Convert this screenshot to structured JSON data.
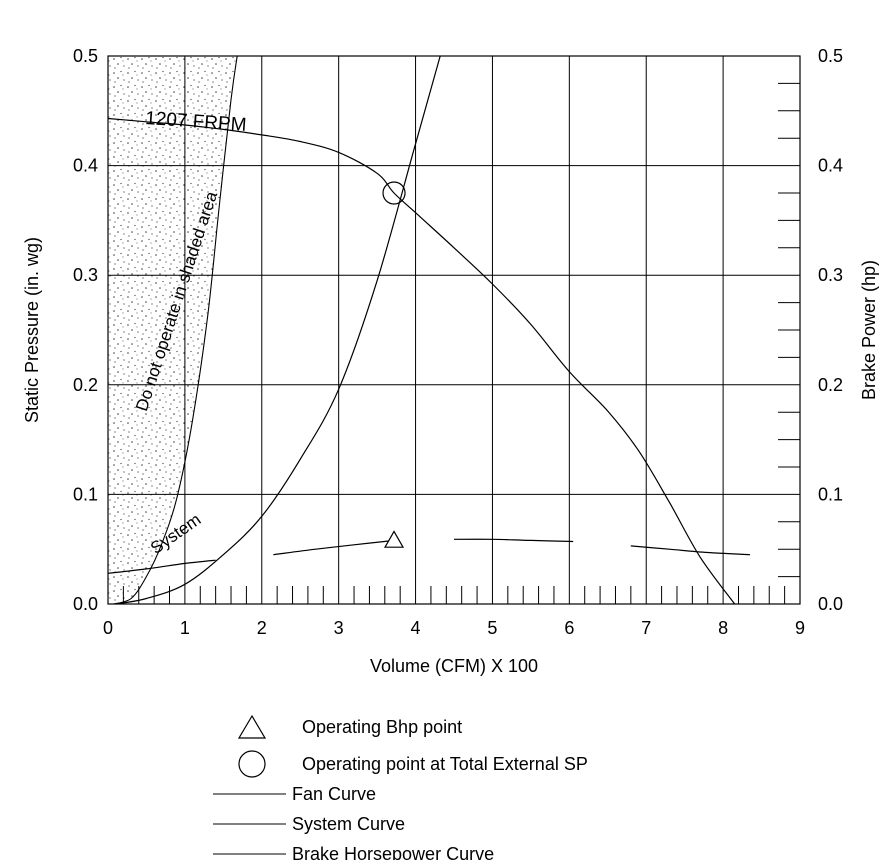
{
  "chart_data": {
    "type": "line",
    "xlabel": "Volume (CFM) X 100",
    "ylabel": "Static Pressure (in. wg)",
    "ylabel_right": "Brake Power (hp)",
    "xlim": [
      0,
      9
    ],
    "ylim": [
      0,
      0.5
    ],
    "ylim_right": [
      0,
      0.5
    ],
    "x_ticks": [
      "0",
      "1",
      "2",
      "3",
      "4",
      "5",
      "6",
      "7",
      "8",
      "9"
    ],
    "y_ticks": [
      "0.0",
      "0.1",
      "0.2",
      "0.3",
      "0.4",
      "0.5"
    ],
    "y_ticks_right": [
      "0.0",
      "0.1",
      "0.2",
      "0.3",
      "0.4",
      "0.5"
    ],
    "grid": true,
    "series": [
      {
        "name": "Fan Curve",
        "label": "1207 FRPM",
        "points": [
          [
            0,
            0.443
          ],
          [
            0.5,
            0.44
          ],
          [
            1.0,
            0.437
          ],
          [
            1.5,
            0.433
          ],
          [
            2.0,
            0.428
          ],
          [
            2.5,
            0.422
          ],
          [
            3.0,
            0.412
          ],
          [
            3.5,
            0.393
          ],
          [
            3.72,
            0.375
          ],
          [
            4.0,
            0.357
          ],
          [
            4.5,
            0.325
          ],
          [
            5.0,
            0.292
          ],
          [
            5.5,
            0.255
          ],
          [
            6.0,
            0.212
          ],
          [
            6.5,
            0.176
          ],
          [
            6.9,
            0.14
          ],
          [
            7.3,
            0.093
          ],
          [
            7.7,
            0.043
          ],
          [
            8.15,
            0.0
          ]
        ]
      },
      {
        "name": "System Curve",
        "label": "System",
        "points": [
          [
            0.1,
            0.0
          ],
          [
            0.5,
            0.005
          ],
          [
            1.0,
            0.018
          ],
          [
            1.5,
            0.045
          ],
          [
            2.0,
            0.08
          ],
          [
            2.5,
            0.132
          ],
          [
            3.0,
            0.196
          ],
          [
            3.5,
            0.295
          ],
          [
            4.0,
            0.42
          ],
          [
            4.32,
            0.5
          ]
        ]
      },
      {
        "name": "Brake Horsepower Curve",
        "segments": [
          [
            [
              0,
              0.028
            ],
            [
              0.5,
              0.032
            ],
            [
              1.0,
              0.037
            ],
            [
              1.4,
              0.04
            ]
          ],
          [
            [
              2.15,
              0.045
            ],
            [
              2.7,
              0.05
            ],
            [
              3.2,
              0.054
            ],
            [
              3.72,
              0.058
            ]
          ],
          [
            [
              4.5,
              0.059
            ],
            [
              5.0,
              0.059
            ],
            [
              5.5,
              0.058
            ],
            [
              6.05,
              0.057
            ]
          ],
          [
            [
              6.8,
              0.053
            ],
            [
              7.3,
              0.05
            ],
            [
              7.8,
              0.047
            ],
            [
              8.35,
              0.045
            ]
          ]
        ]
      }
    ],
    "restricted_region": {
      "label": "Do not operate in shaded area",
      "boundary": [
        [
          0.07,
          0.0
        ],
        [
          0.3,
          0.005
        ],
        [
          0.5,
          0.025
        ],
        [
          0.7,
          0.055
        ],
        [
          0.9,
          0.098
        ],
        [
          1.1,
          0.168
        ],
        [
          1.3,
          0.265
        ],
        [
          1.45,
          0.365
        ],
        [
          1.6,
          0.46
        ],
        [
          1.68,
          0.5
        ]
      ]
    },
    "markers": [
      {
        "name": "Operating Bhp point",
        "shape": "triangle",
        "x": 3.72,
        "y": 0.058
      },
      {
        "name": "Operating point at Total External SP",
        "shape": "circle",
        "x": 3.72,
        "y": 0.375
      }
    ],
    "legend": {
      "placement": "bottom",
      "items": [
        {
          "symbol": "triangle",
          "label": "Operating Bhp point"
        },
        {
          "symbol": "circle",
          "label": "Operating point at Total External SP"
        },
        {
          "symbol": "line",
          "label": "Fan Curve"
        },
        {
          "symbol": "line",
          "label": "System Curve"
        },
        {
          "symbol": "line",
          "label": "Brake Horsepower Curve"
        }
      ]
    }
  }
}
